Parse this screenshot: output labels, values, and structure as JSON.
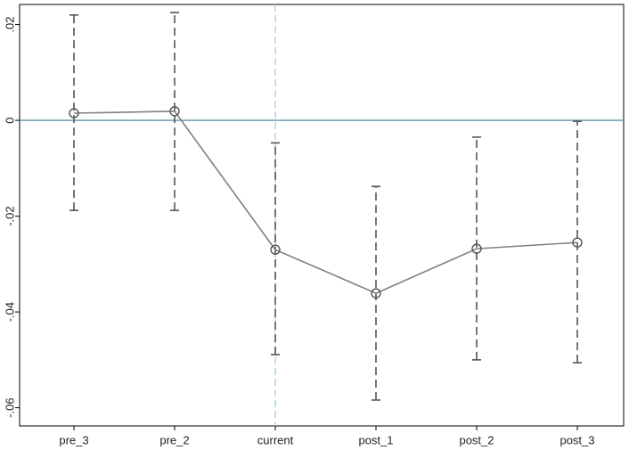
{
  "chart_data": {
    "type": "coefplot",
    "categories": [
      "pre_3",
      "pre_2",
      "current",
      "post_1",
      "post_2",
      "post_3"
    ],
    "values": [
      0.0015,
      0.0019,
      -0.027,
      -0.0361,
      -0.0268,
      -0.0255
    ],
    "ci_low": [
      -0.0188,
      -0.0188,
      -0.0489,
      -0.0584,
      -0.05,
      -0.0506
    ],
    "ci_high": [
      0.022,
      0.0225,
      -0.0047,
      -0.0138,
      -0.0035,
      -0.0002
    ],
    "color": "#808080",
    "ci_color": "#555555",
    "ylim": [
      -0.0638,
      0.0242
    ],
    "yticks": [
      {
        "value": 0.02,
        "label": ".02"
      },
      0,
      {
        "value": -0.02,
        "label": "-.02"
      },
      {
        "value": -0.04,
        "label": "-.04"
      },
      {
        "value": -0.06,
        "label": "-.06"
      }
    ],
    "hline": 0,
    "hline_color": "#5b94a3",
    "vline_index": 2,
    "vline_color": "#a9d0d8"
  }
}
